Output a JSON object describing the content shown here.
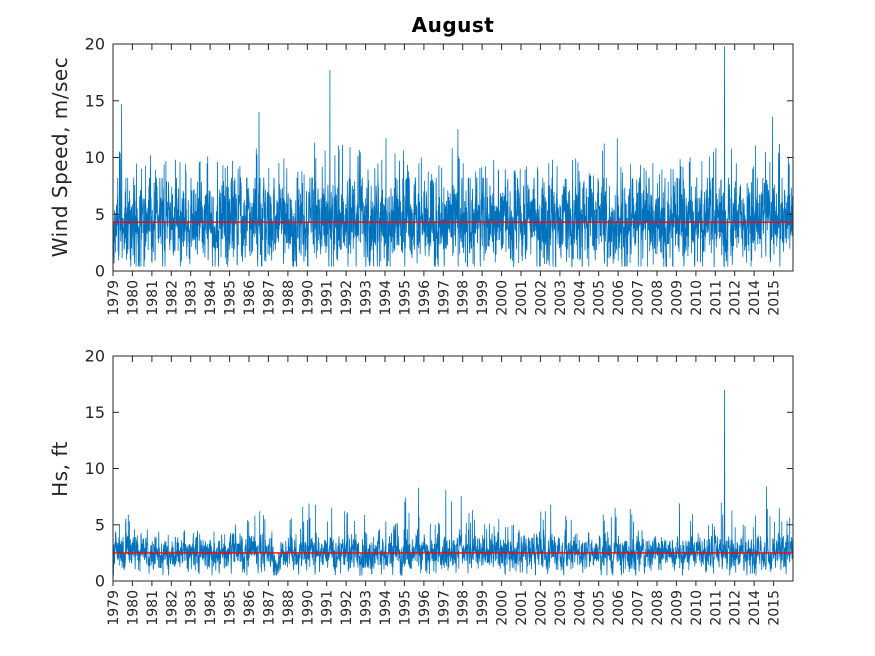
{
  "figure": {
    "title": "August",
    "background": "#ffffff",
    "tick_color": "#262626",
    "axis_color": "#262626"
  },
  "chart_data": [
    {
      "type": "line",
      "title": "August",
      "ylabel": "Wind Speed, m/sec",
      "xlabel": "",
      "ylim": [
        0,
        20
      ],
      "yticks": [
        0,
        5,
        10,
        15,
        20
      ],
      "grid": false,
      "legend": null,
      "series_name": "wind-speed",
      "series_color": "#0072BD",
      "mean_line": {
        "value": 4.3,
        "color": "#ff0000"
      },
      "categories": [
        "1979",
        "1980",
        "1981",
        "1982",
        "1983",
        "1984",
        "1985",
        "1986",
        "1987",
        "1988",
        "1990",
        "1991",
        "1992",
        "1993",
        "1994",
        "1995",
        "1996",
        "1997",
        "1998",
        "1999",
        "2000",
        "2001",
        "2002",
        "2003",
        "2004",
        "2005",
        "2006",
        "2007",
        "2008",
        "2009",
        "2010",
        "2011",
        "2012",
        "2014",
        "2015"
      ],
      "year_max": [
        14.7,
        10.2,
        9.7,
        9.8,
        10.1,
        9.6,
        9.7,
        14.0,
        9.9,
        8.8,
        11.3,
        17.7,
        10.9,
        9.8,
        11.7,
        10.0,
        9.3,
        12.5,
        9.5,
        9.8,
        9.0,
        9.2,
        9.8,
        9.9,
        8.6,
        11.7,
        9.4,
        9.5,
        9.0,
        10.0,
        10.5,
        19.8,
        9.5,
        13.6,
        11.2
      ],
      "band": {
        "mean": 4.3,
        "std": 1.55,
        "ar": 0.5,
        "cap": 8.2,
        "floor": 0.4
      },
      "points_per_year": 150
    },
    {
      "type": "line",
      "title": "",
      "ylabel": "Hs, ft",
      "xlabel": "",
      "ylim": [
        0,
        20
      ],
      "yticks": [
        0,
        5,
        10,
        15,
        20
      ],
      "grid": false,
      "legend": null,
      "series_name": "hs",
      "series_color": "#0072BD",
      "mean_line": {
        "value": 2.5,
        "color": "#ff0000"
      },
      "categories": [
        "1979",
        "1980",
        "1981",
        "1982",
        "1983",
        "1984",
        "1985",
        "1986",
        "1987",
        "1988",
        "1990",
        "1991",
        "1992",
        "1993",
        "1994",
        "1995",
        "1996",
        "1997",
        "1998",
        "1999",
        "2000",
        "2001",
        "2002",
        "2003",
        "2004",
        "2005",
        "2006",
        "2007",
        "2008",
        "2009",
        "2010",
        "2011",
        "2012",
        "2014",
        "2015"
      ],
      "year_max": [
        5.9,
        4.6,
        4.1,
        4.5,
        4.2,
        4.4,
        5.4,
        6.2,
        4.4,
        6.6,
        6.9,
        6.5,
        6.1,
        4.6,
        5.3,
        8.3,
        5.2,
        8.1,
        6.3,
        5.5,
        5.0,
        4.2,
        6.8,
        5.8,
        4.3,
        6.5,
        6.4,
        4.5,
        3.9,
        6.9,
        5.1,
        17.0,
        5.0,
        8.4,
        6.5
      ],
      "band": {
        "mean": 2.5,
        "std": 0.62,
        "ar": 0.6,
        "cap": 4.6,
        "floor": 0.5
      },
      "points_per_year": 150
    }
  ]
}
